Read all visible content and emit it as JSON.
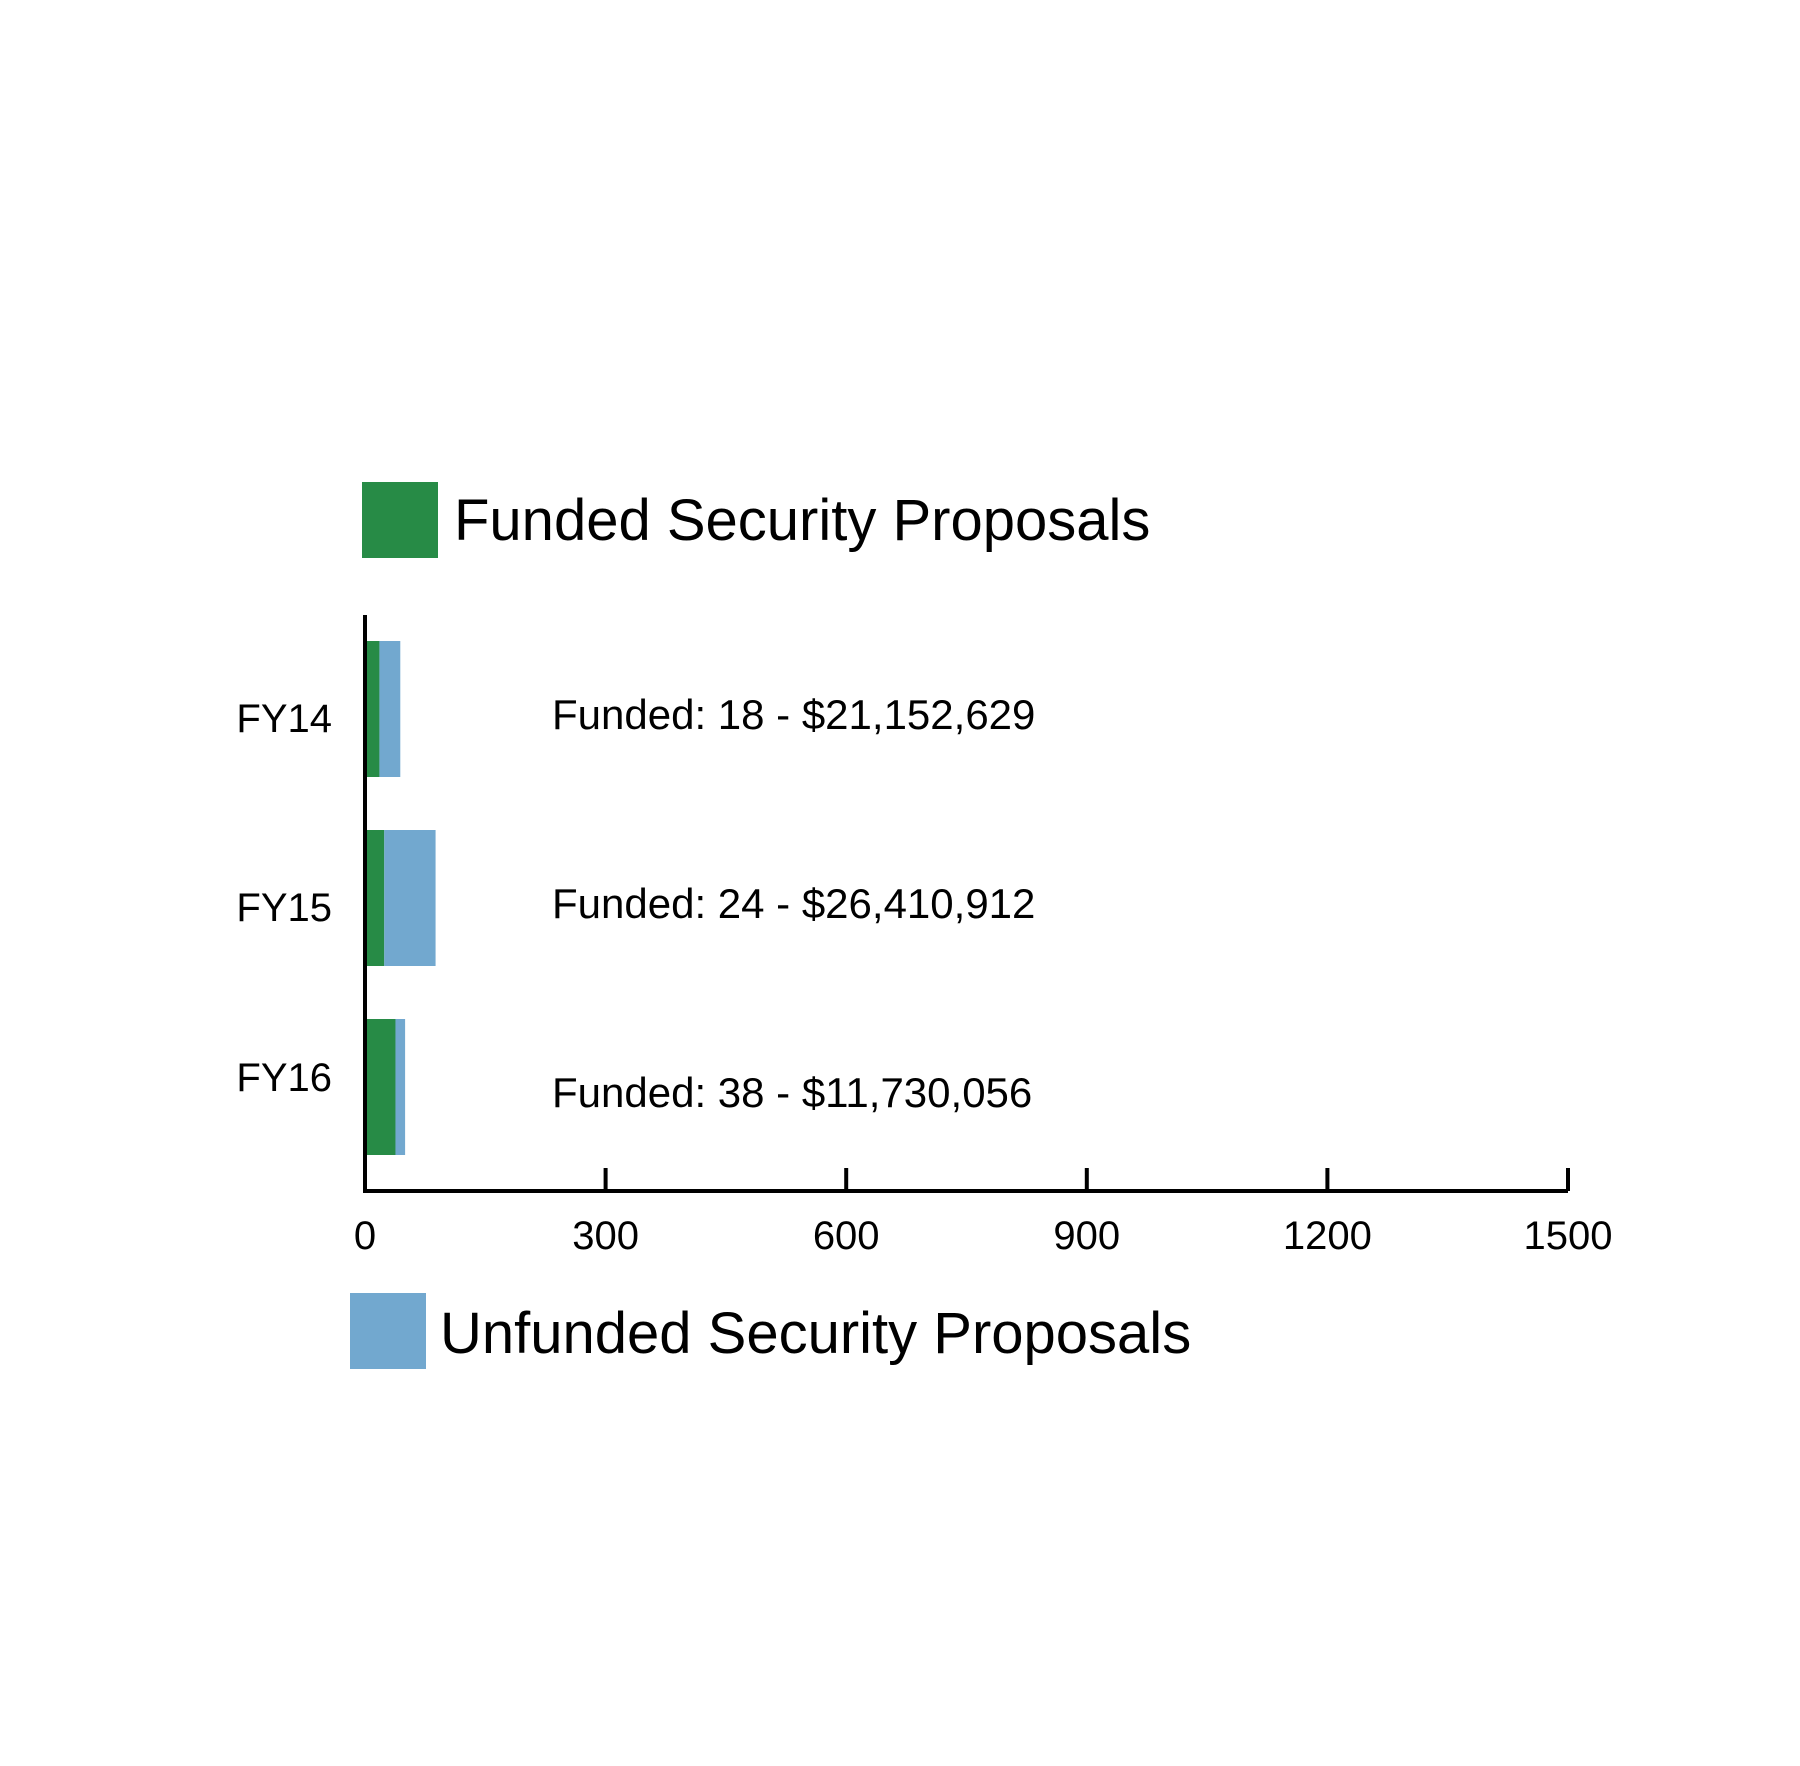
{
  "chart_data": {
    "type": "bar",
    "orientation": "horizontal",
    "stacked": true,
    "categories": [
      "FY14",
      "FY15",
      "FY16"
    ],
    "series": [
      {
        "name": "Funded Security Proposals",
        "values": [
          18,
          24,
          38
        ],
        "color": "#278b46"
      },
      {
        "name": "Unfunded Security Proposals",
        "values": [
          26,
          64,
          12
        ],
        "color": "#72a8cf"
      }
    ],
    "data_labels": [
      "Funded: 18 - $21,152,629",
      "Funded: 24 - $26,410,912",
      "Funded: 38 - $11,730,056"
    ],
    "xlim": [
      0,
      1500
    ],
    "xticks": [
      0,
      300,
      600,
      900,
      1200,
      1500
    ],
    "xtick_labels": [
      "0",
      "300",
      "600",
      "900",
      "1200",
      "1500"
    ],
    "title": "",
    "xlabel": "",
    "ylabel": "",
    "grid": false,
    "legend": [
      {
        "label": "Funded Security Proposals",
        "color": "#278b46",
        "placement": "top"
      },
      {
        "label": "Unfunded Security Proposals",
        "color": "#72a8cf",
        "placement": "bottom"
      }
    ]
  }
}
